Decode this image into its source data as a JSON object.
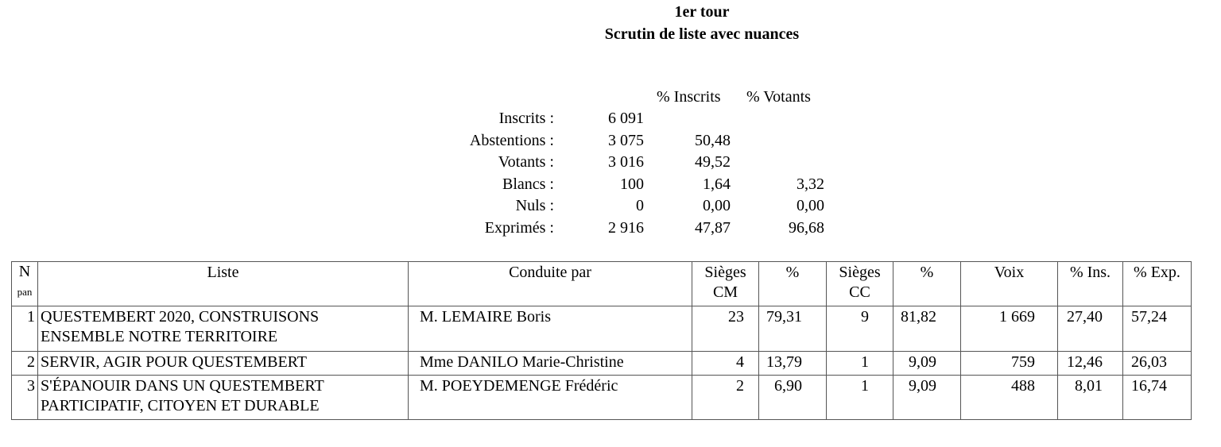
{
  "title": {
    "line1": "1er tour",
    "line2": "Scrutin de liste avec nuances"
  },
  "summary": {
    "col_inscrits": "% Inscrits",
    "col_votants": "% Votants",
    "rows": [
      {
        "label": "Inscrits :",
        "value": "6 091",
        "pct_ins": "",
        "pct_vot": ""
      },
      {
        "label": "Abstentions :",
        "value": "3 075",
        "pct_ins": "50,48",
        "pct_vot": ""
      },
      {
        "label": "Votants :",
        "value": "3 016",
        "pct_ins": "49,52",
        "pct_vot": ""
      },
      {
        "label": "Blancs :",
        "value": "100",
        "pct_ins": "1,64",
        "pct_vot": "3,32"
      },
      {
        "label": "Nuls :",
        "value": "0",
        "pct_ins": "0,00",
        "pct_vot": "0,00"
      },
      {
        "label": "Exprimés :",
        "value": "2 916",
        "pct_ins": "47,87",
        "pct_vot": "96,68"
      }
    ]
  },
  "table": {
    "headers": {
      "n": "N",
      "pan": "pan",
      "liste": "Liste",
      "conduite": "Conduite par",
      "sieges_cm_1": "Sièges",
      "sieges_cm_2": "CM",
      "pct_cm": "%",
      "sieges_cc_1": "Sièges",
      "sieges_cc_2": "CC",
      "pct_cc": "%",
      "voix": "Voix",
      "pct_ins": "% Ins.",
      "pct_exp": "% Exp."
    },
    "rows": [
      {
        "n": "1",
        "liste_1": "QUESTEMBERT 2020, CONSTRUISONS",
        "liste_2": "ENSEMBLE NOTRE TERRITOIRE",
        "conduite": "M. LEMAIRE Boris",
        "sieges_cm": "23",
        "pct_cm": "79,31",
        "sieges_cc": "9",
        "pct_cc": "81,82",
        "voix": "1 669",
        "pct_ins": "27,40",
        "pct_exp": "57,24"
      },
      {
        "n": "2",
        "liste_1": "SERVIR, AGIR POUR QUESTEMBERT",
        "liste_2": "",
        "conduite": "Mme DANILO Marie-Christine",
        "sieges_cm": "4",
        "pct_cm": "13,79",
        "sieges_cc": "1",
        "pct_cc": "9,09",
        "voix": "759",
        "pct_ins": "12,46",
        "pct_exp": "26,03"
      },
      {
        "n": "3",
        "liste_1": "S'ÉPANOUIR DANS UN QUESTEMBERT",
        "liste_2": "PARTICIPATIF, CITOYEN ET DURABLE",
        "conduite": "M. POEYDEMENGE Frédéric",
        "sieges_cm": "2",
        "pct_cm": "6,90",
        "sieges_cc": "1",
        "pct_cc": "9,09",
        "voix": "488",
        "pct_ins": "8,01",
        "pct_exp": "16,74"
      }
    ]
  }
}
